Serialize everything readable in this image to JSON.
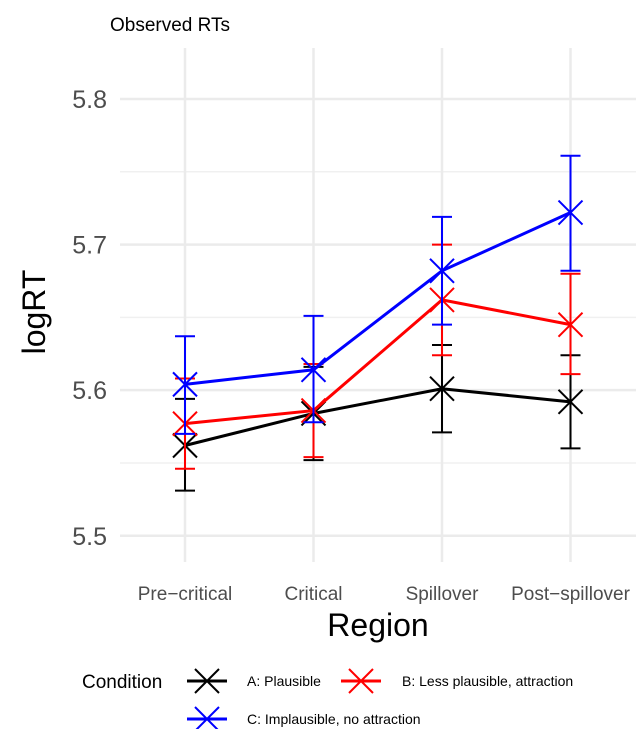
{
  "chart_data": {
    "type": "line",
    "title": "Observed RTs",
    "xlabel": "Region",
    "ylabel": "logRT",
    "categories": [
      "Pre−critical",
      "Critical",
      "Spillover",
      "Post−spillover"
    ],
    "yticks": [
      "5.5",
      "5.6",
      "5.7",
      "5.8"
    ],
    "ylim": [
      5.482,
      5.835
    ],
    "grid": true,
    "legend": {
      "title": "Condition",
      "placement": "bottom"
    },
    "series": [
      {
        "name": "A: Plausible",
        "color": "#000000",
        "values": [
          5.562,
          5.584,
          5.601,
          5.592
        ],
        "lower": [
          5.531,
          5.552,
          5.571,
          5.56
        ],
        "upper": [
          5.594,
          5.616,
          5.631,
          5.624
        ]
      },
      {
        "name": "B: Less plausible, attraction",
        "color": "#ff0000",
        "values": [
          5.577,
          5.586,
          5.662,
          5.645
        ],
        "lower": [
          5.546,
          5.554,
          5.624,
          5.611
        ],
        "upper": [
          5.608,
          5.618,
          5.7,
          5.68
        ]
      },
      {
        "name": "C: Implausible, no attraction",
        "color": "#0000ff",
        "values": [
          5.604,
          5.614,
          5.682,
          5.722
        ],
        "lower": [
          5.57,
          5.578,
          5.645,
          5.682
        ],
        "upper": [
          5.637,
          5.651,
          5.719,
          5.761
        ]
      }
    ]
  }
}
